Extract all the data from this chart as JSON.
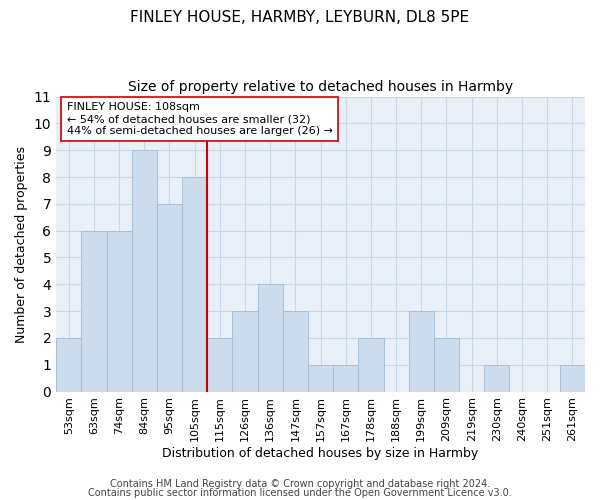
{
  "title": "FINLEY HOUSE, HARMBY, LEYBURN, DL8 5PE",
  "subtitle": "Size of property relative to detached houses in Harmby",
  "xlabel": "Distribution of detached houses by size in Harmby",
  "ylabel": "Number of detached properties",
  "bin_labels": [
    "53sqm",
    "63sqm",
    "74sqm",
    "84sqm",
    "95sqm",
    "105sqm",
    "115sqm",
    "126sqm",
    "136sqm",
    "147sqm",
    "157sqm",
    "167sqm",
    "178sqm",
    "188sqm",
    "199sqm",
    "209sqm",
    "219sqm",
    "230sqm",
    "240sqm",
    "251sqm",
    "261sqm"
  ],
  "bar_heights": [
    2,
    6,
    6,
    9,
    7,
    8,
    2,
    3,
    4,
    3,
    1,
    1,
    2,
    0,
    3,
    2,
    0,
    1,
    0,
    0,
    1
  ],
  "bar_color": "#ccdcec",
  "bar_edge_color": "#a8c0d6",
  "vline_color": "#cc0000",
  "annotation_text": "FINLEY HOUSE: 108sqm\n← 54% of detached houses are smaller (32)\n44% of semi-detached houses are larger (26) →",
  "annotation_box_color": "#ffffff",
  "annotation_box_edge_color": "#cc0000",
  "ylim": [
    0,
    11
  ],
  "yticks": [
    0,
    1,
    2,
    3,
    4,
    5,
    6,
    7,
    8,
    9,
    10,
    11
  ],
  "bg_color": "#e8eff7",
  "grid_color": "#c8d8e8",
  "footer1": "Contains HM Land Registry data © Crown copyright and database right 2024.",
  "footer2": "Contains public sector information licensed under the Open Government Licence v3.0.",
  "title_fontsize": 11,
  "subtitle_fontsize": 10,
  "xlabel_fontsize": 9,
  "ylabel_fontsize": 9,
  "tick_fontsize": 8,
  "annotation_fontsize": 8,
  "footer_fontsize": 7
}
